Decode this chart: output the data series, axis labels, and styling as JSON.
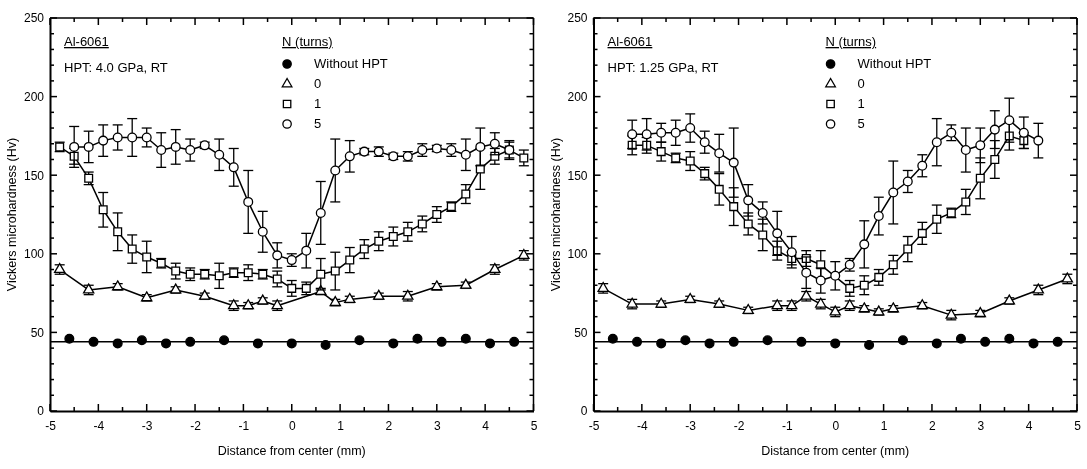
{
  "chart_data": [
    {
      "type": "line",
      "xlabel": "Distance from center (mm)",
      "ylabel": "Vickers microhardness (Hv)",
      "legend_title": "N (turns)",
      "legend": "top",
      "grid": false,
      "annotations": [
        "Al-6061",
        "HPT: 4.0 GPa, RT"
      ],
      "xlim": [
        -5,
        5
      ],
      "ylim": [
        0,
        250
      ],
      "xticks": [
        -5,
        {
          "value": -4.5,
          "label": null
        },
        -4,
        {
          "value": -3.5,
          "label": null
        },
        -3,
        {
          "value": -2.5,
          "label": null
        },
        -2,
        {
          "value": -1.5,
          "label": null
        },
        -1,
        {
          "value": -0.5,
          "label": null
        },
        0,
        {
          "value": 0.5,
          "label": null
        },
        1,
        {
          "value": 1.5,
          "label": null
        },
        2,
        {
          "value": 2.5,
          "label": null
        },
        3,
        {
          "value": 3.5,
          "label": null
        },
        4,
        {
          "value": 4.5,
          "label": null
        },
        5
      ],
      "yticks": [
        0,
        {
          "value": 10,
          "label": null
        },
        {
          "value": 20,
          "label": null
        },
        {
          "value": 30,
          "label": null
        },
        {
          "value": 40,
          "label": null
        },
        50,
        {
          "value": 60,
          "label": null
        },
        {
          "value": 70,
          "label": null
        },
        {
          "value": 80,
          "label": null
        },
        {
          "value": 90,
          "label": null
        },
        100,
        {
          "value": 110,
          "label": null
        },
        {
          "value": 120,
          "label": null
        },
        {
          "value": 130,
          "label": null
        },
        {
          "value": 140,
          "label": null
        },
        150,
        {
          "value": 160,
          "label": null
        },
        {
          "value": 170,
          "label": null
        },
        {
          "value": 180,
          "label": null
        },
        {
          "value": 190,
          "label": null
        },
        200,
        {
          "value": 210,
          "label": null
        },
        {
          "value": 220,
          "label": null
        },
        {
          "value": 230,
          "label": null
        },
        {
          "value": 240,
          "label": null
        },
        250
      ],
      "ref_lines": [
        {
          "axis": "y",
          "value": 44,
          "color": "#000000"
        }
      ],
      "series": [
        {
          "name": "Without HPT",
          "type": "scatter",
          "marker": "circle",
          "color": "#000000",
          "x": [
            -4.6,
            -4.1,
            -3.6,
            -3.1,
            -2.6,
            -2.1,
            -1.4,
            -0.7,
            0,
            0.7,
            1.4,
            2.1,
            2.6,
            3.1,
            3.6,
            4.1,
            4.6
          ],
          "values": [
            46,
            44,
            43,
            45,
            43,
            44,
            45,
            43,
            43,
            42,
            45,
            43,
            46,
            44,
            46,
            43,
            44
          ]
        },
        {
          "name": "0",
          "type": "line",
          "marker": "triangle",
          "color": "#000000",
          "x": [
            -4.8,
            -4.2,
            -3.6,
            -3.0,
            -2.4,
            -1.8,
            -1.2,
            -0.9,
            -0.6,
            -0.3,
            0.6,
            0.9,
            1.2,
            1.8,
            2.4,
            3.0,
            3.6,
            4.2,
            4.8
          ],
          "values": [
            90,
            77,
            79,
            72,
            77,
            73,
            67,
            67,
            70,
            67,
            76,
            69,
            71,
            73,
            73,
            79,
            80,
            90,
            99
          ],
          "errors": [
            3,
            3,
            2,
            2,
            2,
            2,
            3,
            2,
            2,
            3,
            2,
            2,
            2,
            2,
            3,
            2,
            2,
            3,
            3
          ]
        },
        {
          "name": "1",
          "type": "line",
          "marker": "square",
          "color": "#000000",
          "x": [
            -4.8,
            -4.5,
            -4.2,
            -3.9,
            -3.6,
            -3.3,
            -3.0,
            -2.7,
            -2.4,
            -2.1,
            -1.8,
            -1.5,
            -1.2,
            -0.9,
            -0.6,
            -0.3,
            0,
            0.3,
            0.6,
            0.9,
            1.2,
            1.5,
            1.8,
            2.1,
            2.4,
            2.7,
            3.0,
            3.3,
            3.6,
            3.9,
            4.2,
            4.5,
            4.8
          ],
          "values": [
            168,
            162,
            148,
            128,
            114,
            103,
            98,
            94,
            89,
            87,
            87,
            86,
            88,
            88,
            87,
            84,
            78,
            78,
            87,
            89,
            96,
            103,
            108,
            111,
            114,
            119,
            125,
            130,
            138,
            154,
            162,
            166,
            161
          ],
          "errors": [
            3,
            5,
            4,
            11,
            12,
            9,
            10,
            3,
            5,
            4,
            3,
            8,
            3,
            5,
            3,
            5,
            5,
            4,
            10,
            12,
            8,
            6,
            6,
            6,
            6,
            5,
            5,
            3,
            6,
            13,
            5,
            5,
            5
          ]
        },
        {
          "name": "5",
          "type": "line",
          "marker": "circle",
          "color": "#000000",
          "x": [
            -4.5,
            -4.2,
            -3.9,
            -3.6,
            -3.3,
            -3.0,
            -2.7,
            -2.4,
            -2.1,
            -1.8,
            -1.5,
            -1.2,
            -0.9,
            -0.6,
            -0.3,
            0,
            0.3,
            0.6,
            0.9,
            1.2,
            1.5,
            1.8,
            2.1,
            2.4,
            2.7,
            3.0,
            3.3,
            3.6,
            3.9,
            4.2,
            4.5
          ],
          "values": [
            168,
            168,
            172,
            174,
            174,
            174,
            166,
            168,
            166,
            169,
            163,
            155,
            133,
            114,
            99,
            96,
            102,
            126,
            153,
            162,
            165,
            165,
            162,
            162,
            166,
            167,
            166,
            163,
            168,
            170,
            166
          ],
          "errors": [
            13,
            10,
            10,
            8,
            12,
            6,
            11,
            11,
            7,
            2,
            10,
            12,
            20,
            13,
            8,
            4,
            11,
            20,
            20,
            10,
            2,
            3,
            2,
            3,
            4,
            2,
            4,
            10,
            12,
            7,
            6
          ]
        }
      ]
    },
    {
      "type": "line",
      "xlabel": "Distance from center (mm)",
      "ylabel": "Vickers microhardness (Hv)",
      "legend_title": "N (turns)",
      "legend": "top",
      "grid": false,
      "annotations": [
        "Al-6061",
        "HPT: 1.25 GPa, RT"
      ],
      "xlim": [
        -5,
        5
      ],
      "ylim": [
        0,
        250
      ],
      "xticks": [
        -5,
        {
          "value": -4.5,
          "label": null
        },
        -4,
        {
          "value": -3.5,
          "label": null
        },
        -3,
        {
          "value": -2.5,
          "label": null
        },
        -2,
        {
          "value": -1.5,
          "label": null
        },
        -1,
        {
          "value": -0.5,
          "label": null
        },
        0,
        {
          "value": 0.5,
          "label": null
        },
        1,
        {
          "value": 1.5,
          "label": null
        },
        2,
        {
          "value": 2.5,
          "label": null
        },
        3,
        {
          "value": 3.5,
          "label": null
        },
        4,
        {
          "value": 4.5,
          "label": null
        },
        5
      ],
      "yticks": [
        0,
        {
          "value": 10,
          "label": null
        },
        {
          "value": 20,
          "label": null
        },
        {
          "value": 30,
          "label": null
        },
        {
          "value": 40,
          "label": null
        },
        50,
        {
          "value": 60,
          "label": null
        },
        {
          "value": 70,
          "label": null
        },
        {
          "value": 80,
          "label": null
        },
        {
          "value": 90,
          "label": null
        },
        100,
        {
          "value": 110,
          "label": null
        },
        {
          "value": 120,
          "label": null
        },
        {
          "value": 130,
          "label": null
        },
        {
          "value": 140,
          "label": null
        },
        150,
        {
          "value": 160,
          "label": null
        },
        {
          "value": 170,
          "label": null
        },
        {
          "value": 180,
          "label": null
        },
        {
          "value": 190,
          "label": null
        },
        200,
        {
          "value": 210,
          "label": null
        },
        {
          "value": 220,
          "label": null
        },
        {
          "value": 230,
          "label": null
        },
        {
          "value": 240,
          "label": null
        },
        250
      ],
      "ref_lines": [
        {
          "axis": "y",
          "value": 44,
          "color": "#000000"
        }
      ],
      "series": [
        {
          "name": "Without HPT",
          "type": "scatter",
          "marker": "circle",
          "color": "#000000",
          "x": [
            -4.6,
            -4.1,
            -3.6,
            -3.1,
            -2.6,
            -2.1,
            -1.4,
            -0.7,
            0,
            0.7,
            1.4,
            2.1,
            2.6,
            3.1,
            3.6,
            4.1,
            4.6
          ],
          "values": [
            46,
            44,
            43,
            45,
            43,
            44,
            45,
            44,
            43,
            42,
            45,
            43,
            46,
            44,
            46,
            43,
            44
          ]
        },
        {
          "name": "0",
          "type": "line",
          "marker": "triangle",
          "color": "#000000",
          "x": [
            -4.8,
            -4.2,
            -3.6,
            -3.0,
            -2.4,
            -1.8,
            -1.2,
            -0.9,
            -0.6,
            -0.3,
            0,
            0.3,
            0.6,
            0.9,
            1.2,
            1.8,
            2.4,
            3.0,
            3.6,
            4.2,
            4.8
          ],
          "values": [
            78,
            68,
            68,
            71,
            68,
            64,
            67,
            67,
            73,
            68,
            63,
            67,
            65,
            63,
            65,
            67,
            61,
            62,
            70,
            77,
            84
          ],
          "errors": [
            3,
            3,
            2,
            2,
            2,
            2,
            3,
            3,
            3,
            3,
            3,
            3,
            2,
            2,
            2,
            2,
            3,
            2,
            2,
            3,
            3
          ]
        },
        {
          "name": "1",
          "type": "line",
          "marker": "square",
          "color": "#000000",
          "x": [
            -4.2,
            -3.9,
            -3.6,
            -3.3,
            -3.0,
            -2.7,
            -2.4,
            -2.1,
            -1.8,
            -1.5,
            -1.2,
            -0.9,
            -0.6,
            -0.3,
            0,
            0.3,
            0.6,
            0.9,
            1.2,
            1.5,
            1.8,
            2.1,
            2.4,
            2.7,
            3.0,
            3.3,
            3.6,
            3.9
          ],
          "values": [
            169,
            169,
            165,
            161,
            159,
            151,
            141,
            130,
            119,
            112,
            102,
            97,
            97,
            93,
            null,
            78,
            80,
            85,
            93,
            103,
            113,
            122,
            126,
            133,
            148,
            160,
            175,
            172
          ],
          "errors": [
            6,
            5,
            6,
            3,
            6,
            4,
            10,
            12,
            7,
            10,
            6,
            4,
            5,
            9,
            null,
            5,
            6,
            5,
            6,
            8,
            7,
            9,
            3,
            8,
            13,
            12,
            9,
            5
          ]
        },
        {
          "name": "5",
          "type": "line",
          "marker": "circle",
          "color": "#000000",
          "x": [
            -4.2,
            -3.9,
            -3.6,
            -3.3,
            -3.0,
            -2.7,
            -2.4,
            -2.1,
            -1.8,
            -1.5,
            -1.2,
            -0.9,
            -0.6,
            -0.3,
            0,
            0.3,
            0.6,
            0.9,
            1.2,
            1.5,
            1.8,
            2.1,
            2.4,
            2.7,
            3.0,
            3.3,
            3.6,
            3.9,
            4.2
          ],
          "values": [
            176,
            176,
            177,
            177,
            180,
            171,
            164,
            158,
            134,
            126,
            113,
            101,
            88,
            83,
            86,
            93,
            106,
            124,
            139,
            146,
            156,
            171,
            177,
            166,
            169,
            179,
            185,
            177,
            172
          ],
          "errors": [
            9,
            10,
            6,
            8,
            9,
            7,
            12,
            22,
            10,
            7,
            14,
            10,
            10,
            8,
            9,
            4,
            15,
            12,
            20,
            7,
            7,
            15,
            5,
            14,
            11,
            12,
            14,
            10,
            11
          ]
        }
      ]
    }
  ]
}
